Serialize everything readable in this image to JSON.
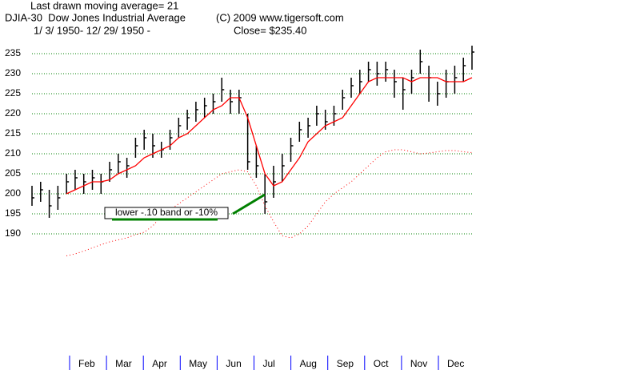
{
  "chart_data": {
    "type": "ohlc",
    "title": "Last drawn moving average= 21",
    "subtitle": "DJIA-30  Dow Jones Industrial Average",
    "copyright": "(C) 2009 www.tigersoft.com",
    "date_range": "1/ 3/ 1950- 12/ 29/ 1950 -",
    "last_close": "Close= $235.40",
    "annotation": "lower -.10 band or -10%",
    "month_labels": [
      "Feb",
      "Mar",
      "Apr",
      "May",
      "Jun",
      "Jul",
      "Aug",
      "Sep",
      "Oct",
      "Nov",
      "Dec"
    ],
    "ylim": [
      180,
      240
    ],
    "yticks": [
      190,
      195,
      200,
      205,
      210,
      215,
      220,
      225,
      230,
      235
    ],
    "grid": true,
    "bars": {
      "color": "#000000",
      "high": [
        202,
        203,
        201,
        202,
        205,
        206,
        205,
        206,
        205,
        208,
        210,
        209,
        214,
        216,
        215,
        213,
        216,
        219,
        221,
        223,
        224,
        225,
        229,
        226,
        226,
        220,
        212,
        205,
        207,
        210,
        214,
        218,
        219,
        222,
        221,
        222,
        226,
        229,
        231,
        233,
        233,
        233,
        231,
        229,
        231,
        236,
        232,
        228,
        231,
        232,
        234,
        237
      ],
      "low": [
        197,
        198,
        194,
        196,
        200,
        201,
        200,
        201,
        200,
        203,
        205,
        204,
        209,
        211,
        209,
        209,
        211,
        214,
        216,
        218,
        219,
        220,
        223,
        220,
        220,
        206,
        204,
        195,
        199,
        203,
        208,
        213,
        214,
        217,
        216,
        217,
        221,
        224,
        225,
        228,
        227,
        228,
        224,
        221,
        225,
        230,
        223,
        222,
        224,
        225,
        228,
        231
      ],
      "close": [
        199,
        201,
        197,
        199,
        203,
        204,
        203,
        204,
        203,
        206,
        208,
        207,
        212,
        214,
        212,
        211,
        214,
        217,
        219,
        221,
        222,
        223,
        226,
        223,
        224,
        208,
        207,
        198,
        203,
        207,
        212,
        216,
        217,
        220,
        218,
        220,
        224,
        227,
        228,
        231,
        230,
        231,
        228,
        226,
        229,
        233,
        229,
        225,
        228,
        229,
        232,
        235.4
      ]
    },
    "series": [
      {
        "name": "moving average",
        "color": "#ff0000",
        "style": "solid",
        "values": [
          null,
          null,
          null,
          null,
          200,
          201,
          202,
          203,
          203,
          203.5,
          205,
          206,
          207,
          209,
          210,
          211,
          212,
          214,
          215,
          217,
          219,
          221,
          222,
          224,
          224,
          219,
          212,
          205,
          202,
          203,
          206,
          209,
          213,
          215,
          217,
          218,
          219,
          222,
          225,
          228,
          229,
          229,
          229,
          229,
          228,
          229,
          229,
          229,
          228,
          228,
          228,
          229
        ]
      },
      {
        "name": "lower band",
        "color": "#ff0000",
        "style": "dotted",
        "values": [
          null,
          null,
          null,
          null,
          184.5,
          185,
          185.7,
          186.5,
          187.3,
          188,
          188.5,
          189,
          189.8,
          190.4,
          192,
          194.5,
          196,
          197.5,
          199,
          200.5,
          202,
          203.5,
          205,
          205.5,
          206,
          205.5,
          202,
          197,
          193,
          189.5,
          189,
          190,
          192,
          195,
          198,
          200,
          201.5,
          203,
          205,
          207,
          209,
          210.5,
          211,
          211,
          210.5,
          210,
          210.2,
          210.5,
          210.8,
          210.8,
          210.5,
          210.3
        ]
      }
    ]
  }
}
